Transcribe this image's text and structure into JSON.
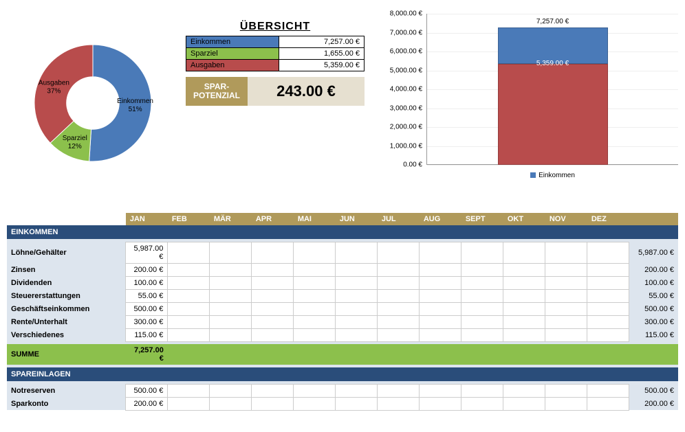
{
  "colors": {
    "einkommen": "#4a7ab8",
    "sparziel": "#8cc04c",
    "ausgaben": "#b84c4c",
    "gold": "#b09a5b",
    "gold_light": "#e6e0d0",
    "section_bg": "#2a4d7a",
    "row_bg": "#dde5ee",
    "grid": "#eeeeee"
  },
  "donut": {
    "type": "donut",
    "slices": [
      {
        "label_name": "Einkommen",
        "pct_text": "51%",
        "pct": 51,
        "color": "#4a7ab8"
      },
      {
        "label_name": "Ausgaben",
        "pct_text": "37%",
        "pct": 37,
        "color": "#b84c4c"
      },
      {
        "label_name": "Sparziel",
        "pct_text": "12%",
        "pct": 12,
        "color": "#8cc04c"
      }
    ],
    "inner_radius_ratio": 0.45
  },
  "overview": {
    "title": "ÜBERSICHT",
    "rows": [
      {
        "label": "Einkommen",
        "value": "7,257.00 €",
        "color": "#4a7ab8"
      },
      {
        "label": "Sparziel",
        "value": "1,655.00 €",
        "color": "#8cc04c"
      },
      {
        "label": "Ausgaben",
        "value": "5,359.00 €",
        "color": "#b84c4c"
      }
    ],
    "spar_label1": "SPAR-",
    "spar_label2": "POTENZIAL",
    "spar_value": "243.00 €"
  },
  "barchart": {
    "type": "stacked-bar",
    "ylim": [
      0,
      8000
    ],
    "ytick_step": 1000,
    "ytick_labels": [
      "0.00 €",
      "1,000.00 €",
      "2,000.00 €",
      "3,000.00 €",
      "4,000.00 €",
      "5,000.00 €",
      "6,000.00 €",
      "7,000.00 €",
      "8,000.00 €"
    ],
    "top_label": "7,257.00 €",
    "mid_label": "5,359.00 €",
    "segments": [
      {
        "from": 0,
        "to": 5359,
        "color": "#b84c4c"
      },
      {
        "from": 5359,
        "to": 7257,
        "color": "#4a7ab8"
      }
    ],
    "legend_label": "Einkommen",
    "legend_color": "#4a7ab8"
  },
  "months": [
    "JAN",
    "FEB",
    "MÄR",
    "APR",
    "MAI",
    "JUN",
    "JUL",
    "AUG",
    "SEPT",
    "OKT",
    "NOV",
    "DEZ"
  ],
  "einkommen": {
    "header": "EINKOMMEN",
    "rows": [
      {
        "label": "Löhne/Gehälter",
        "jan": "5,987.00 €",
        "total": "5,987.00 €"
      },
      {
        "label": "Zinsen",
        "jan": "200.00 €",
        "total": "200.00 €"
      },
      {
        "label": "Dividenden",
        "jan": "100.00 €",
        "total": "100.00 €"
      },
      {
        "label": "Steuererstattungen",
        "jan": "55.00 €",
        "total": "55.00 €"
      },
      {
        "label": "Geschäftseinkommen",
        "jan": "500.00 €",
        "total": "500.00 €"
      },
      {
        "label": "Rente/Unterhalt",
        "jan": "300.00 €",
        "total": "300.00 €"
      },
      {
        "label": "Verschiedenes",
        "jan": "115.00 €",
        "total": "115.00 €"
      }
    ],
    "sum_label": "SUMME",
    "sum_value": "7,257.00 €"
  },
  "spareinlagen": {
    "header": "SPAREINLAGEN",
    "rows": [
      {
        "label": "Notreserven",
        "jan": "500.00 €",
        "total": "500.00 €"
      },
      {
        "label": "Sparkonto",
        "jan": "200.00 €",
        "total": "200.00 €"
      }
    ]
  }
}
